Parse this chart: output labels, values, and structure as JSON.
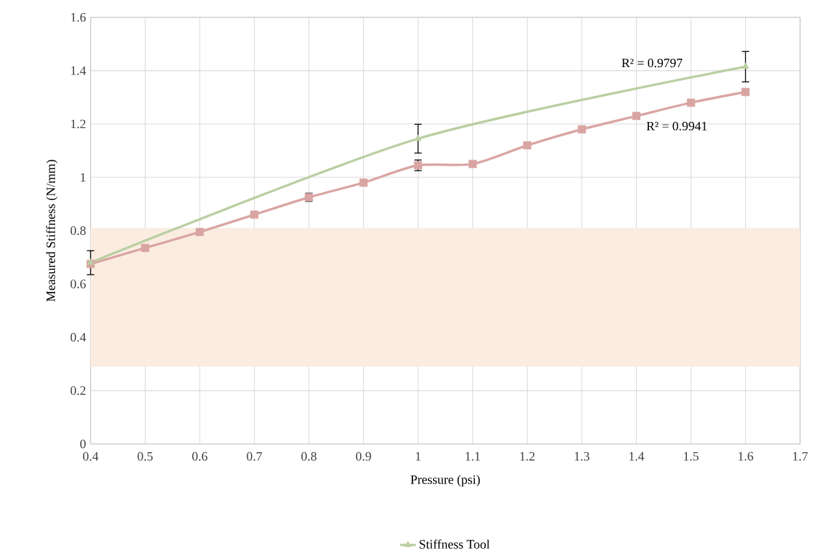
{
  "chart_data": {
    "type": "line",
    "xlabel": "Pressure (psi)",
    "ylabel": "Measured Stiffness (N/mm)",
    "xlim": [
      0.4,
      1.7
    ],
    "xticks": [
      0.4,
      0.5,
      0.6,
      0.7,
      0.8,
      0.9,
      1,
      1.1,
      1.2,
      1.3,
      1.4,
      1.5,
      1.6,
      1.7
    ],
    "ylim": [
      0,
      1.6
    ],
    "yticks": [
      0,
      0.2,
      0.4,
      0.6,
      0.8,
      1,
      1.2,
      1.4,
      1.6
    ],
    "grid": true,
    "legend": "bottom",
    "line_style": "solid",
    "bands": [
      {
        "axis": "y",
        "from": 0.29,
        "to": 0.81,
        "color": "#fbece2"
      }
    ],
    "series": [
      {
        "color": "#d9a5a3",
        "marker": "square",
        "x": [
          0.4,
          0.5,
          0.6,
          0.7,
          0.8,
          0.9,
          1,
          1.1,
          1.2,
          1.3,
          1.4,
          1.5,
          1.6
        ],
        "values": [
          0.675,
          0.735,
          0.795,
          0.86,
          0.925,
          0.98,
          1.045,
          1.05,
          1.12,
          1.18,
          1.23,
          1.28,
          1.32
        ],
        "errors": [
          null,
          null,
          null,
          null,
          0.015,
          null,
          0.02,
          null,
          null,
          null,
          null,
          null,
          null
        ]
      },
      {
        "name": "Stiffness Tool",
        "color": "#b9d0a2",
        "marker": "triangle",
        "x": [
          0.4,
          1,
          1.6
        ],
        "values": [
          0.68,
          1.145,
          1.415
        ],
        "errors": [
          0.045,
          0.054,
          0.057
        ]
      }
    ],
    "annotations": [
      "R² = 0.9797",
      "R² = 0.9941"
    ]
  }
}
